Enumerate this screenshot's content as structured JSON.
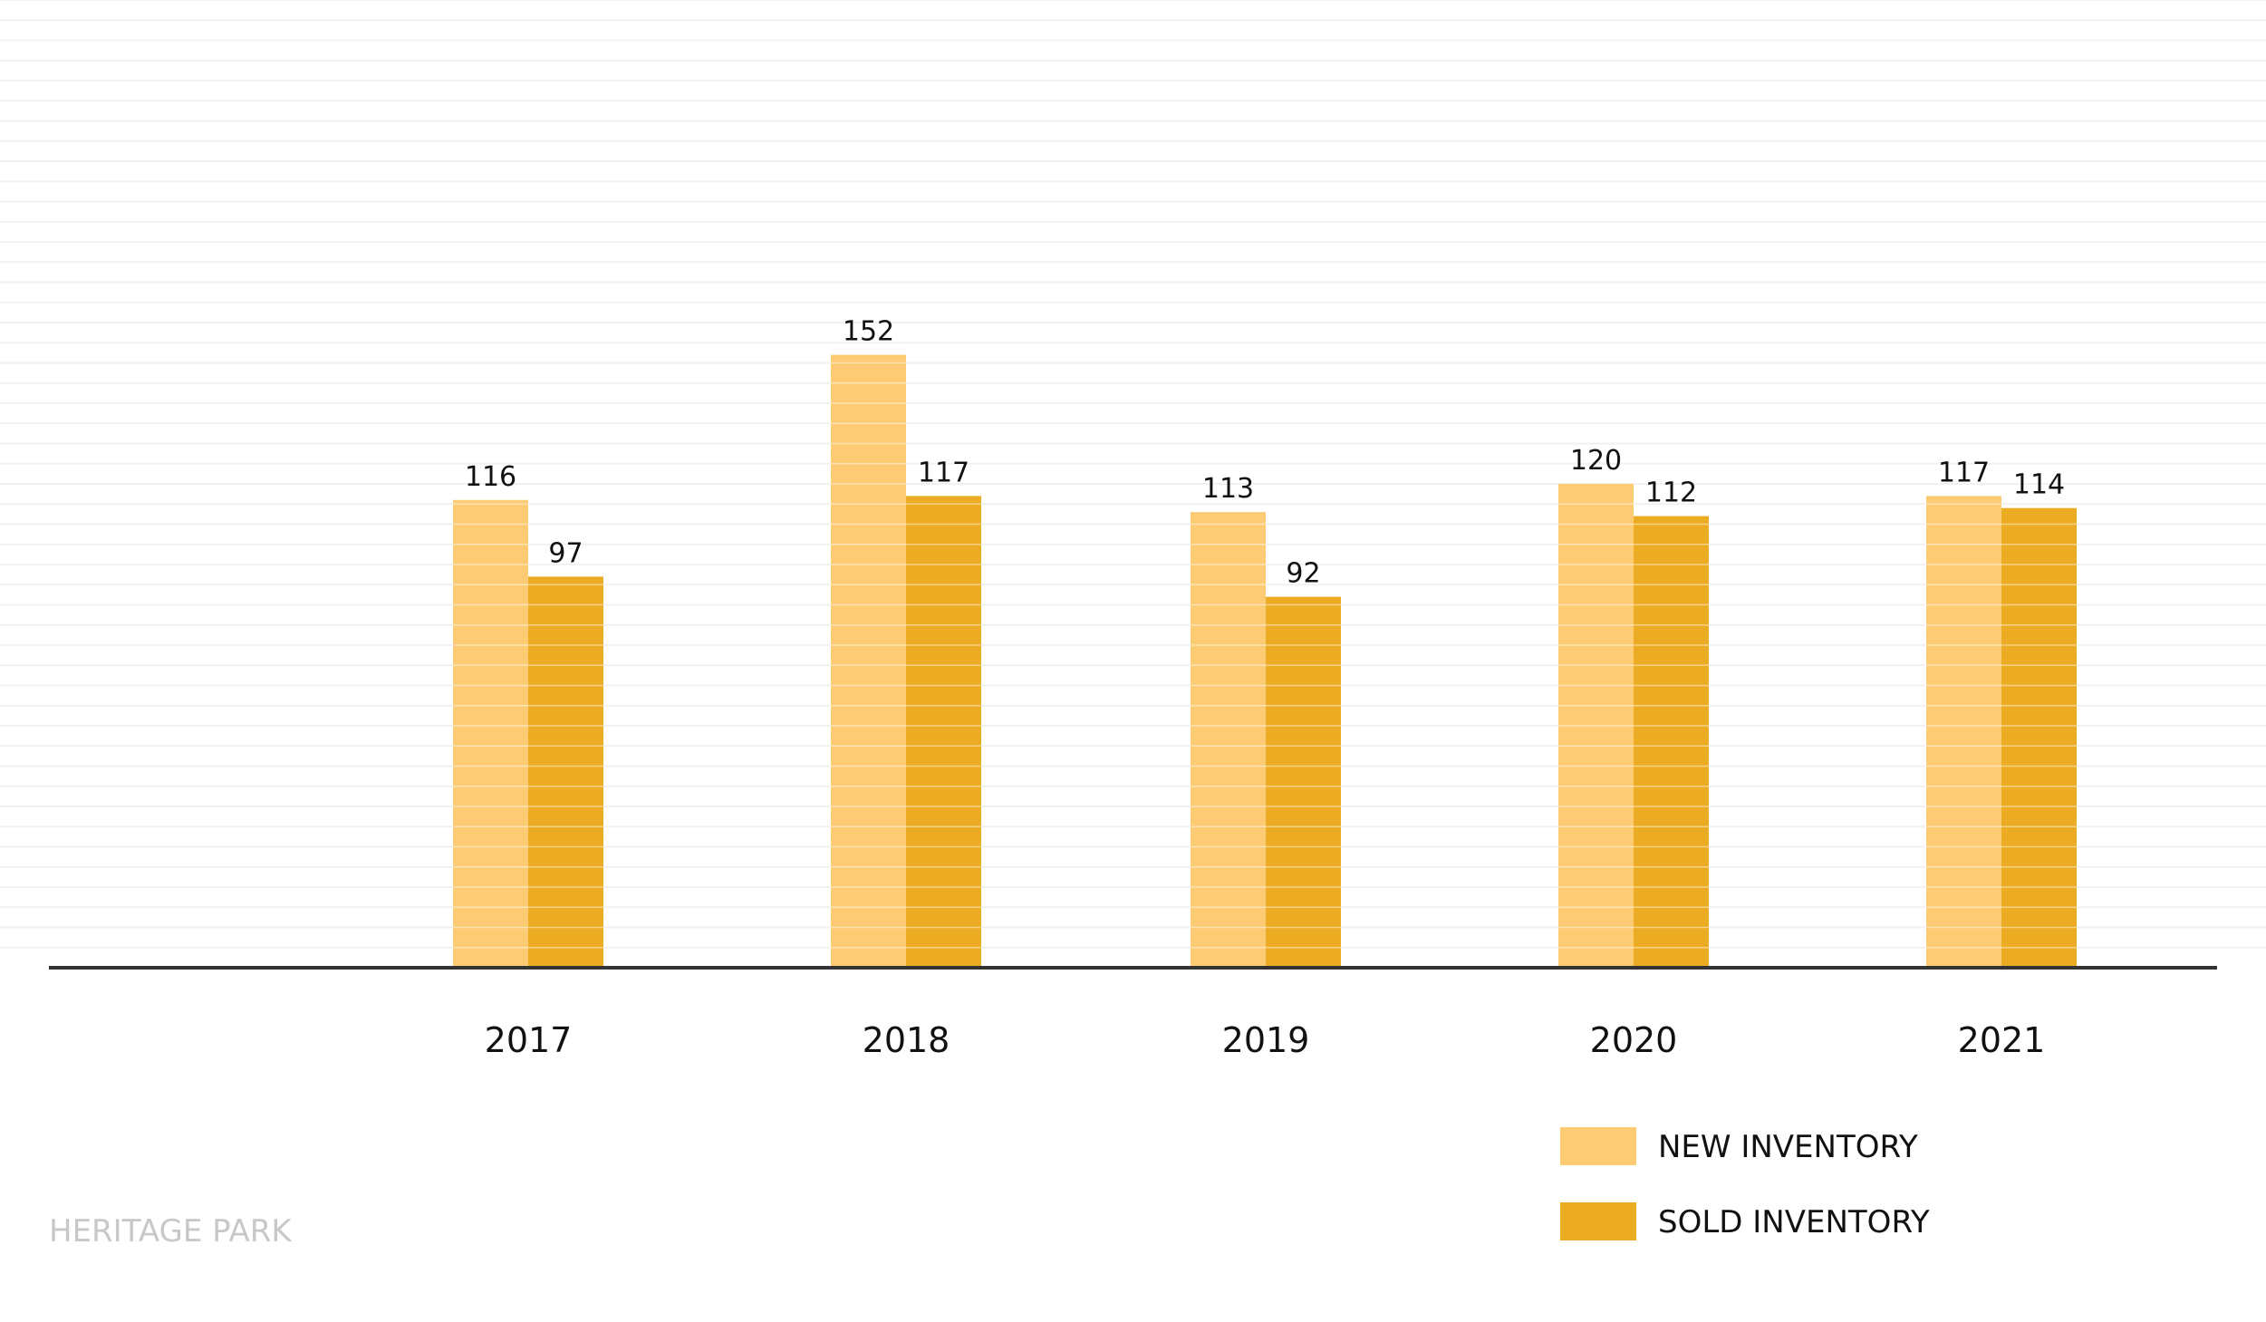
{
  "chart_data": {
    "type": "bar",
    "categories": [
      "2017",
      "2018",
      "2019",
      "2020",
      "2021"
    ],
    "series": [
      {
        "name": "NEW INVENTORY",
        "values": [
          116,
          152,
          113,
          120,
          117
        ],
        "color": "#fccb74"
      },
      {
        "name": "SOLD INVENTORY",
        "values": [
          97,
          117,
          92,
          112,
          114
        ],
        "color": "#ebab22"
      }
    ],
    "ylim": [
      0,
      240
    ],
    "grid": true,
    "legend_position": "bottom-right",
    "data_labels": true
  },
  "footer": {
    "label": "HERITAGE PARK"
  },
  "colors": {
    "gridline": "#f1f1f1",
    "axis": "#333333",
    "text": "#111111",
    "footer_text": "#c8c8c8"
  }
}
